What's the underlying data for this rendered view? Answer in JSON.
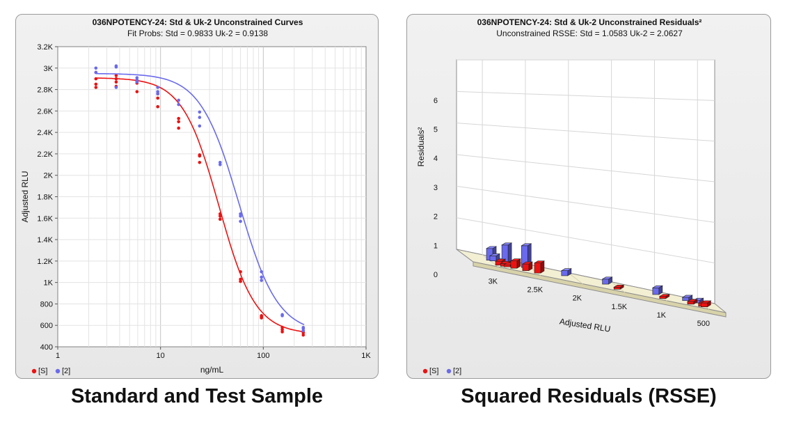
{
  "captions": {
    "left": "Standard and Test Sample",
    "right": "Squared Residuals (RSSE)"
  },
  "chart_data": [
    {
      "type": "scatter",
      "title": "036NPOTENCY-24: Std & Uk-2  Unconstrained Curves",
      "subtitle": "Fit Probs: Std = 0.9833  Uk-2 = 0.9138",
      "xlabel": "ng/mL",
      "ylabel": "Adjusted RLU",
      "x_scale": "log",
      "xlim": [
        1,
        1000
      ],
      "ylim": [
        400,
        3200
      ],
      "x_ticks": [
        1,
        10,
        100,
        1000
      ],
      "x_tick_labels": [
        "1",
        "10",
        "100",
        "1K"
      ],
      "y_ticks": [
        400,
        600,
        800,
        1000,
        1200,
        1400,
        1600,
        1800,
        2000,
        2200,
        2400,
        2600,
        2800,
        3000,
        3200
      ],
      "y_tick_labels": [
        "400",
        "600",
        "800",
        "1K",
        "1.2K",
        "1.4K",
        "1.6K",
        "1.8K",
        "2K",
        "2.2K",
        "2.4K",
        "2.6K",
        "2.8K",
        "3K",
        "3.2K"
      ],
      "grid": true,
      "legend": "bottom-left",
      "series": [
        {
          "name": "[S]",
          "color": "#ee1111",
          "points": [
            [
              2.35,
              2820
            ],
            [
              2.35,
              2850
            ],
            [
              2.35,
              2900
            ],
            [
              2.35,
              2960
            ],
            [
              3.7,
              2830
            ],
            [
              3.7,
              2870
            ],
            [
              3.7,
              2900
            ],
            [
              3.7,
              2930
            ],
            [
              5.9,
              2780
            ],
            [
              5.9,
              2860
            ],
            [
              5.9,
              2880
            ],
            [
              9.4,
              2640
            ],
            [
              9.4,
              2720
            ],
            [
              9.4,
              2760
            ],
            [
              15,
              2440
            ],
            [
              15,
              2500
            ],
            [
              15,
              2530
            ],
            [
              24,
              2120
            ],
            [
              24,
              2180
            ],
            [
              24,
              2190
            ],
            [
              38,
              1590
            ],
            [
              38,
              1620
            ],
            [
              38,
              1640
            ],
            [
              60,
              1010
            ],
            [
              60,
              1030
            ],
            [
              60,
              1100
            ],
            [
              96,
              670
            ],
            [
              96,
              680
            ],
            [
              96,
              690
            ],
            [
              153,
              540
            ],
            [
              153,
              560
            ],
            [
              153,
              580
            ],
            [
              245,
              510
            ],
            [
              245,
              530
            ],
            [
              245,
              545
            ]
          ],
          "curve": {
            "top": 2910,
            "bottom": 518,
            "ec50": 37,
            "slope": 2.45
          }
        },
        {
          "name": "[2]",
          "color": "#6a6aee",
          "points": [
            [
              2.35,
              2960
            ],
            [
              2.35,
              3000
            ],
            [
              3.7,
              2820
            ],
            [
              3.7,
              3010
            ],
            [
              3.7,
              3020
            ],
            [
              5.9,
              2870
            ],
            [
              5.9,
              2890
            ],
            [
              5.9,
              2910
            ],
            [
              9.4,
              2760
            ],
            [
              9.4,
              2780
            ],
            [
              9.4,
              2820
            ],
            [
              15,
              2660
            ],
            [
              15,
              2700
            ],
            [
              24,
              2460
            ],
            [
              24,
              2540
            ],
            [
              24,
              2590
            ],
            [
              38,
              2100
            ],
            [
              38,
              2120
            ],
            [
              60,
              1570
            ],
            [
              60,
              1620
            ],
            [
              60,
              1640
            ],
            [
              96,
              1020
            ],
            [
              96,
              1050
            ],
            [
              96,
              1100
            ],
            [
              153,
              690
            ],
            [
              153,
              700
            ],
            [
              245,
              550
            ],
            [
              245,
              570
            ],
            [
              245,
              580
            ]
          ],
          "curve": {
            "top": 2950,
            "bottom": 525,
            "ec50": 58,
            "slope": 2.3
          }
        }
      ]
    },
    {
      "type": "bar",
      "title": "036NPOTENCY-24: Std & Uk-2  Unconstrained Residuals²",
      "subtitle": "Unconstrained RSSE: Std = 1.0583  Uk-2 = 2.0627",
      "xlabel": "Adjusted RLU",
      "ylabel": "Residuals²",
      "xlim": [
        3300,
        300
      ],
      "ylim": [
        0,
        6
      ],
      "x_ticks": [
        3000,
        2500,
        2000,
        1500,
        1000,
        500
      ],
      "x_tick_labels": [
        "3K",
        "2.5K",
        "2K",
        "1.5K",
        "1K",
        "500"
      ],
      "y_ticks": [
        0,
        1,
        2,
        3,
        4,
        5,
        6
      ],
      "y_tick_labels": [
        "0",
        "1",
        "2",
        "3",
        "4",
        "5",
        "6"
      ],
      "grid": true,
      "legend": "bottom-left",
      "series": [
        {
          "name": "[S]",
          "color": "#ee1111",
          "bars": [
            [
              2960,
              0.12
            ],
            [
              2900,
              0.08
            ],
            [
              2860,
              0.06
            ],
            [
              2780,
              0.22
            ],
            [
              2640,
              0.2
            ],
            [
              2500,
              0.3
            ],
            [
              1560,
              0.06
            ],
            [
              1020,
              0.05
            ],
            [
              690,
              0.08
            ],
            [
              560,
              0.1
            ],
            [
              530,
              0.12
            ]
          ]
        },
        {
          "name": "[2]",
          "color": "#6a6aee",
          "bars": [
            [
              3000,
              0.35
            ],
            [
              2960,
              0.15
            ],
            [
              2820,
              0.55
            ],
            [
              2590,
              0.65
            ],
            [
              2120,
              0.15
            ],
            [
              1640,
              0.15
            ],
            [
              1050,
              0.2
            ],
            [
              700,
              0.1
            ],
            [
              570,
              0.08
            ]
          ]
        }
      ]
    }
  ]
}
